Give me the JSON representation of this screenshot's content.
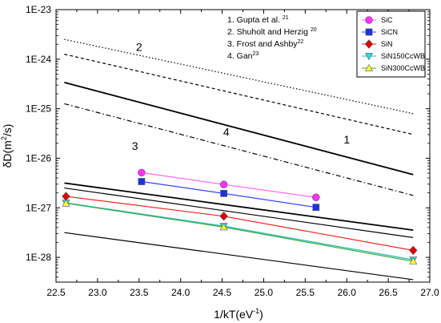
{
  "chart_data": {
    "type": "scatter",
    "xlabel_main": "1/kT(eV",
    "xlabel_sup": "-1",
    "xlabel_tail": ")",
    "ylabel_main": "δD(m",
    "ylabel_sup": "2",
    "ylabel_tail": "/s)",
    "xlim": [
      22.5,
      27.0
    ],
    "ylim_log10": [
      -28.5,
      -23
    ],
    "x_ticks": [
      22.5,
      23.0,
      23.5,
      24.0,
      24.5,
      25.0,
      25.5,
      26.0,
      26.5,
      27.0
    ],
    "x_tick_labels": [
      "22.5",
      "23.0",
      "23.5",
      "24.0",
      "24.5",
      "25.0",
      "25.5",
      "26.0",
      "26.5",
      "27.0"
    ],
    "y_ticks_log10": [
      -23,
      -24,
      -25,
      -26,
      -27,
      -28
    ],
    "y_tick_labels": [
      "1E-23",
      "1E-24",
      "1E-25",
      "1E-26",
      "1E-27",
      "1E-28"
    ],
    "references": [
      {
        "text": "1.  Gupta et al. ",
        "sup": "21"
      },
      {
        "text": "2.  Shuholt and Herzig ",
        "sup": "20"
      },
      {
        "text": "3.  Frost and Ashby",
        "sup": "22"
      },
      {
        "text": "4.  Gan",
        "sup": "23"
      }
    ],
    "reference_lines": [
      {
        "label": "1",
        "style": "solid-thin",
        "x": [
          22.6,
          26.8
        ],
        "log10_y": [
          -27.5,
          -28.45
        ]
      },
      {
        "label": "2",
        "style": "dotted",
        "x": [
          22.6,
          26.8
        ],
        "log10_y": [
          -23.6,
          -25.1
        ]
      },
      {
        "label": "",
        "style": "dashed",
        "x": [
          22.6,
          26.8
        ],
        "log10_y": [
          -23.9,
          -25.52
        ]
      },
      {
        "label": "4",
        "style": "solid-thick",
        "x": [
          22.6,
          26.8
        ],
        "log10_y": [
          -24.47,
          -26.33
        ]
      },
      {
        "label": "3",
        "style": "dashdot",
        "x": [
          22.6,
          26.8
        ],
        "log10_y": [
          -24.9,
          -26.75
        ]
      },
      {
        "label": "",
        "style": "solid-thick",
        "x": [
          22.6,
          26.8
        ],
        "log10_y": [
          -26.5,
          -27.45
        ]
      },
      {
        "label": "",
        "style": "solid-thin",
        "x": [
          22.6,
          26.8
        ],
        "log10_y": [
          -26.6,
          -27.6
        ]
      }
    ],
    "curve_labels": [
      {
        "text": "2",
        "x": 23.5,
        "log10_y": -23.83
      },
      {
        "text": "4",
        "x": 24.55,
        "log10_y": -25.55
      },
      {
        "text": "1",
        "x": 26.0,
        "log10_y": -25.7
      },
      {
        "text": "3",
        "x": 23.45,
        "log10_y": -25.83
      }
    ],
    "series": [
      {
        "name": "SiC",
        "marker": "circle",
        "color": "#ff33ff",
        "line_color": "#ff66ff",
        "x": [
          23.53,
          24.52,
          25.63
        ],
        "log10_y": [
          -26.29,
          -26.53,
          -26.79
        ]
      },
      {
        "name": "SiCN",
        "marker": "square",
        "color": "#1a33dd",
        "line_color": "#3344ff",
        "x": [
          23.53,
          24.52,
          25.63
        ],
        "log10_y": [
          -26.47,
          -26.71,
          -26.99
        ]
      },
      {
        "name": "SiN",
        "marker": "diamond",
        "color": "#dd0000",
        "line_color": "#ee2222",
        "x": [
          22.62,
          24.52,
          26.8
        ],
        "log10_y": [
          -26.77,
          -27.17,
          -27.86
        ]
      },
      {
        "name": "SiN150CcWB",
        "marker": "triangle-down",
        "color": "#22e0e8",
        "line_color": "#22bbbb",
        "x": [
          22.62,
          24.52,
          26.8
        ],
        "log10_y": [
          -26.9,
          -27.37,
          -28.05
        ]
      },
      {
        "name": "SiN300CcWB",
        "marker": "triangle-up",
        "color": "#ffff33",
        "line_color": "#44aa44",
        "x": [
          22.62,
          24.52,
          26.8
        ],
        "log10_y": [
          -26.91,
          -27.39,
          -28.08
        ]
      }
    ],
    "legend_position": "top-right",
    "grid": false
  }
}
